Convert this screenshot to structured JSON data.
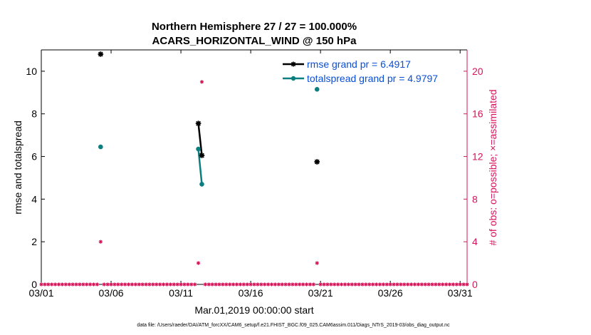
{
  "chart_data": {
    "type": "line",
    "title": [
      "Northern Hemisphere 27 / 27 = 100.000%",
      "ACARS_HORIZONTAL_WIND @ 150 hPa"
    ],
    "xlabel": "Mar.01,2019 00:00:00 start",
    "ylabel_left": "rmse and totalspread",
    "ylabel_right": "# of obs: o=possible; ×=assimilated",
    "x_tick_labels": [
      "03/01",
      "03/06",
      "03/11",
      "03/16",
      "03/21",
      "03/26",
      "03/31"
    ],
    "x_tick_days": [
      0,
      5,
      10,
      15,
      20,
      25,
      30
    ],
    "xlim_days": [
      0,
      30.5
    ],
    "ylim_left": [
      0,
      11
    ],
    "yticks_left": [
      "0",
      "2",
      "4",
      "6",
      "8",
      "10"
    ],
    "ylim_right": [
      0,
      22
    ],
    "yticks_right": [
      "0",
      "4",
      "8",
      "12",
      "16",
      "20"
    ],
    "legend_position": "top-right",
    "series": [
      {
        "name": "rmse grand pr = 6.4917",
        "axis": "left",
        "color": "#000000",
        "marker": "asterisk",
        "points": [
          [
            4.25,
            10.8
          ],
          [
            11.25,
            7.55
          ],
          [
            11.5,
            6.05
          ],
          [
            19.75,
            5.75
          ]
        ]
      },
      {
        "name": "totalspread grand pr = 4.9797",
        "axis": "left",
        "color": "#0b7f7f",
        "marker": "circle",
        "points": [
          [
            4.25,
            6.45
          ],
          [
            11.25,
            6.35
          ],
          [
            11.5,
            4.7
          ],
          [
            19.75,
            9.15
          ]
        ]
      }
    ],
    "obs_counts": {
      "axis": "right",
      "color": "#d6145a",
      "step_days": 0.25,
      "nonzero": [
        [
          4.25,
          4
        ],
        [
          11.25,
          2
        ],
        [
          11.5,
          19
        ],
        [
          19.75,
          2
        ]
      ]
    },
    "lines_connected": [
      [
        11.25,
        11.5
      ]
    ]
  },
  "footnote": "data file: /Users/raeder/DAI/ATM_forcXX/CAM6_setup/f.e21.FHIST_BGC.f09_025.CAM6assim.011/Diags_NTrS_2019-03/obs_diag_output.nc"
}
